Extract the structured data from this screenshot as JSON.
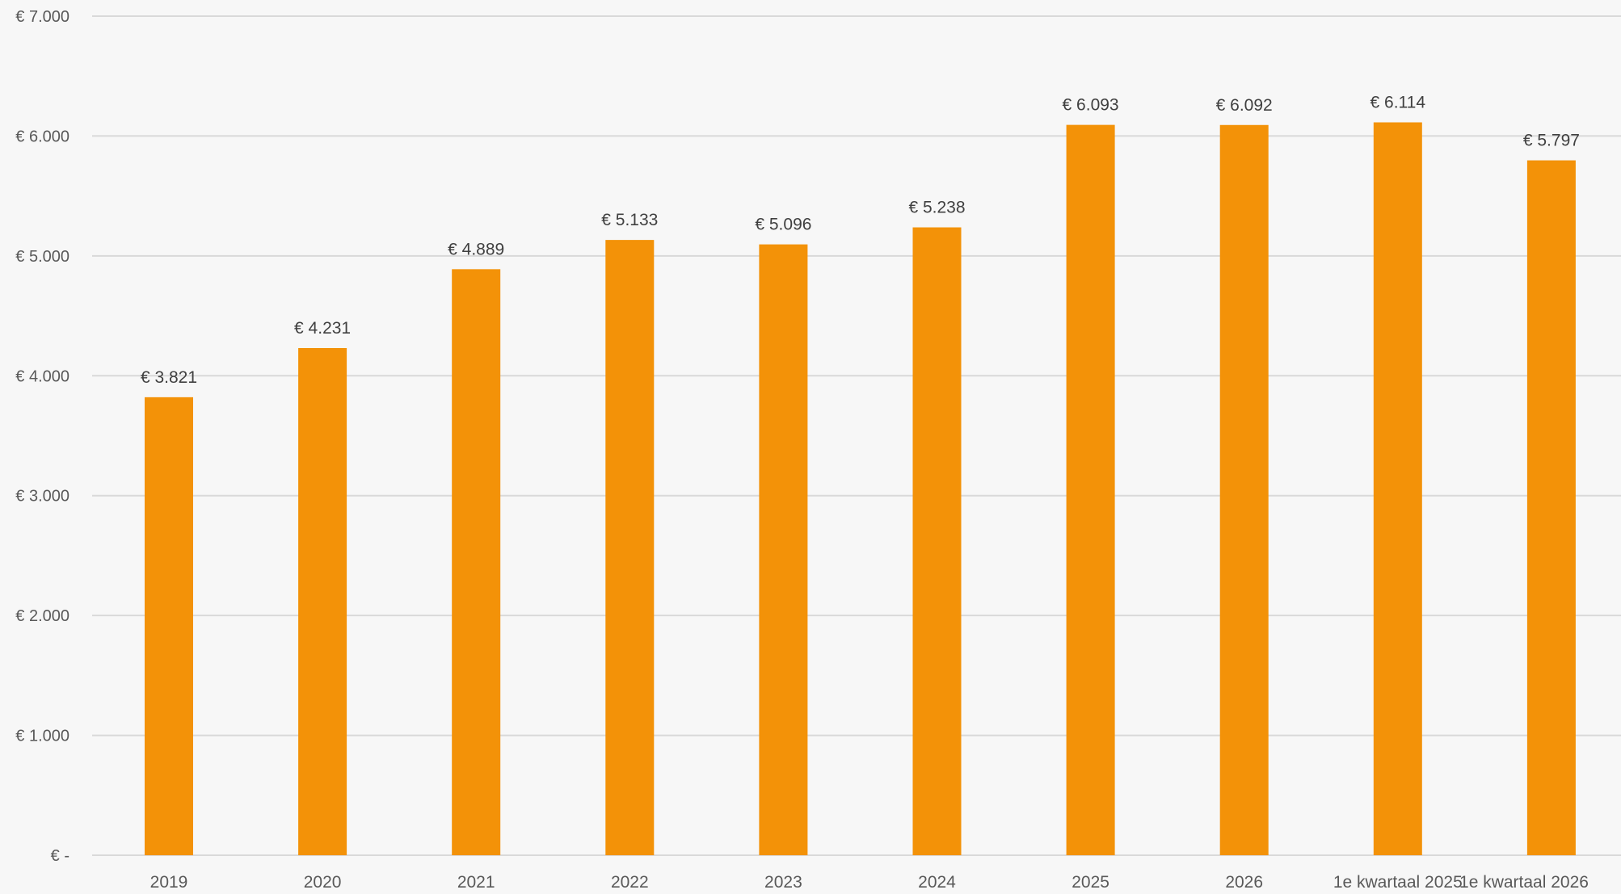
{
  "chart_data": {
    "type": "bar",
    "title": "",
    "xlabel": "",
    "ylabel": "",
    "categories": [
      "2019",
      "2020",
      "2021",
      "2022",
      "2023",
      "2024",
      "2025",
      "2026",
      "1e kwartaal 2025",
      "1e kwartaal 2026"
    ],
    "values": [
      3821,
      4231,
      4889,
      5133,
      5096,
      5238,
      6093,
      6092,
      6114,
      5797
    ],
    "data_labels": [
      "€ 3.821",
      "€ 4.231",
      "€ 4.889",
      "€ 5.133",
      "€ 5.096",
      "€ 5.238",
      "€ 6.093",
      "€ 6.092",
      "€ 6.114",
      "€ 5.797"
    ],
    "ylim": [
      0,
      7000
    ],
    "yticks": [
      0,
      1000,
      2000,
      3000,
      4000,
      5000,
      6000,
      7000
    ],
    "ytick_labels": [
      "€ -",
      "€ 1.000",
      "€ 2.000",
      "€ 3.000",
      "€ 4.000",
      "€ 5.000",
      "€ 6.000",
      "€ 7.000"
    ],
    "grid": true,
    "legend": "none",
    "colors": {
      "bar": "#f39208",
      "grid": "#d9d9d9",
      "background": "#f7f7f7"
    }
  }
}
